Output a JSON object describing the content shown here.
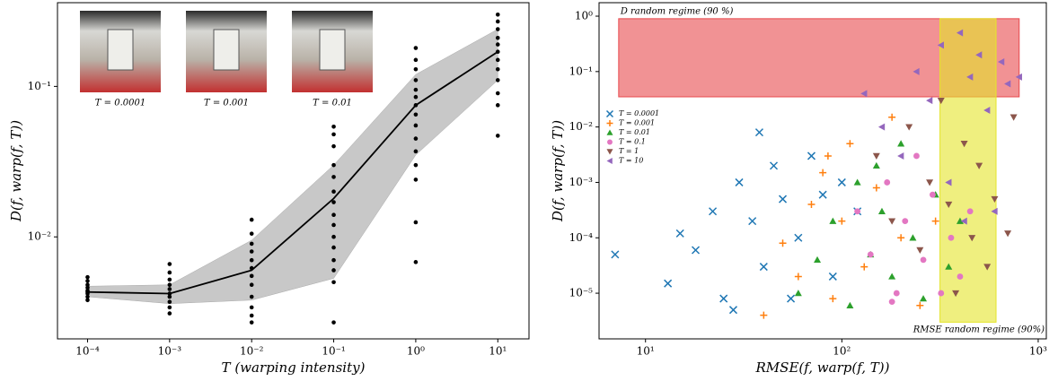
{
  "chart_data": [
    {
      "type": "line",
      "xlabel": "T (warping intensity)",
      "ylabel": "D(f, warp(f, T))",
      "xscale": "log",
      "yscale": "log",
      "xlim": [
        4.3e-05,
        24
      ],
      "ylim": [
        0.0021,
        0.36
      ],
      "xticks": [
        {
          "value": 0.0001,
          "label": "10⁻⁴"
        },
        {
          "value": 0.001,
          "label": "10⁻³"
        },
        {
          "value": 0.01,
          "label": "10⁻²"
        },
        {
          "value": 0.1,
          "label": "10⁻¹"
        },
        {
          "value": 1,
          "label": "10⁰"
        },
        {
          "value": 10,
          "label": "10¹"
        }
      ],
      "yticks": [
        {
          "value": 0.01,
          "label": "10⁻²"
        },
        {
          "value": 0.1,
          "label": "10⁻¹"
        }
      ],
      "x": [
        0.0001,
        0.001,
        0.01,
        0.1,
        1,
        10
      ],
      "series": [
        {
          "color": "#000000",
          "values": [
            0.0043,
            0.0042,
            0.006,
            0.018,
            0.075,
            0.17
          ]
        }
      ],
      "band": {
        "color": "#c8c8c8",
        "lower": [
          0.004,
          0.0036,
          0.0038,
          0.0053,
          0.035,
          0.11
        ],
        "upper": [
          0.0047,
          0.0048,
          0.0095,
          0.03,
          0.12,
          0.24
        ]
      },
      "dots": {
        "color": "#000000",
        "groups": [
          {
            "x": 0.0001,
            "values": [
              0.0038,
              0.004,
              0.0042,
              0.0043,
              0.0044,
              0.0046,
              0.0048,
              0.0051,
              0.0054
            ]
          },
          {
            "x": 0.001,
            "values": [
              0.0031,
              0.0034,
              0.0037,
              0.004,
              0.0042,
              0.0045,
              0.0048,
              0.0052,
              0.0058,
              0.0066
            ]
          },
          {
            "x": 0.01,
            "values": [
              0.0027,
              0.003,
              0.0034,
              0.004,
              0.0048,
              0.0055,
              0.0062,
              0.007,
              0.008,
              0.009,
              0.0105,
              0.013
            ]
          },
          {
            "x": 0.1,
            "values": [
              0.0027,
              0.005,
              0.006,
              0.007,
              0.0085,
              0.01,
              0.012,
              0.014,
              0.017,
              0.02,
              0.025,
              0.03,
              0.04,
              0.048,
              0.054
            ]
          },
          {
            "x": 1,
            "values": [
              0.0068,
              0.0125,
              0.024,
              0.03,
              0.037,
              0.045,
              0.055,
              0.065,
              0.075,
              0.085,
              0.095,
              0.11,
              0.13,
              0.15,
              0.18
            ]
          },
          {
            "x": 10,
            "values": [
              0.047,
              0.075,
              0.09,
              0.11,
              0.13,
              0.15,
              0.17,
              0.19,
              0.21,
              0.24,
              0.27,
              0.3
            ]
          }
        ]
      },
      "annotations": [
        "T = 0.0001",
        "T = 0.001",
        "T = 0.01"
      ]
    },
    {
      "type": "scatter",
      "xlabel": "RMSE(f, warp(f, T))",
      "ylabel": "D(f, warp(f, T))",
      "xscale": "log",
      "yscale": "log",
      "xlim": [
        5.8,
        1100
      ],
      "ylim": [
        1.5e-06,
        1.75
      ],
      "xticks": [
        {
          "value": 10,
          "label": "10¹"
        },
        {
          "value": 100,
          "label": "10²"
        },
        {
          "value": 1000,
          "label": "10³"
        }
      ],
      "yticks": [
        {
          "value": 1e-05,
          "label": "10⁻⁵"
        },
        {
          "value": 0.0001,
          "label": "10⁻⁴"
        },
        {
          "value": 0.001,
          "label": "10⁻³"
        },
        {
          "value": 0.01,
          "label": "10⁻²"
        },
        {
          "value": 0.1,
          "label": "10⁻¹"
        },
        {
          "value": 1,
          "label": "10⁰"
        }
      ],
      "legend": "upper left",
      "regions": [
        {
          "label": "D random regime (90 %)",
          "color": "#e8494d",
          "x": [
            7.3,
            800
          ],
          "y": [
            0.035,
            0.9
          ]
        },
        {
          "label": "RMSE random regime (90%)",
          "color": "#e5e52a",
          "x": [
            316,
            610
          ],
          "y": [
            3e-06,
            0.9
          ]
        }
      ],
      "series": [
        {
          "name": "T = 0.0001",
          "color": "#1f77b4",
          "marker": "x",
          "x": [
            7,
            13,
            15,
            18,
            22,
            25,
            30,
            35,
            40,
            45,
            50,
            55,
            60,
            70,
            80,
            90,
            100,
            120,
            28,
            38
          ],
          "values": [
            5e-05,
            1.5e-05,
            0.00012,
            6e-05,
            0.0003,
            8e-06,
            0.001,
            0.0002,
            3e-05,
            0.002,
            0.0005,
            8e-06,
            0.0001,
            0.003,
            0.0006,
            2e-05,
            0.001,
            0.0003,
            5e-06,
            0.008
          ]
        },
        {
          "name": "T = 0.001",
          "color": "#ff7f0e",
          "marker": "+",
          "x": [
            40,
            50,
            60,
            70,
            80,
            90,
            100,
            110,
            130,
            150,
            180,
            200,
            250,
            300,
            85
          ],
          "values": [
            4e-06,
            8e-05,
            2e-05,
            0.0004,
            0.0015,
            8e-06,
            0.0002,
            0.005,
            3e-05,
            0.0008,
            0.015,
            0.0001,
            6e-06,
            0.0002,
            0.003
          ]
        },
        {
          "name": "T = 0.01",
          "color": "#2ca02c",
          "marker": "^",
          "x": [
            60,
            75,
            90,
            110,
            120,
            140,
            160,
            180,
            200,
            230,
            260,
            300,
            350,
            400,
            150
          ],
          "values": [
            1e-05,
            4e-05,
            0.0002,
            6e-06,
            0.001,
            5e-05,
            0.0003,
            2e-05,
            0.005,
            0.0001,
            8e-06,
            0.0006,
            3e-05,
            0.0002,
            0.002
          ]
        },
        {
          "name": "T = 0.1",
          "color": "#e377c2",
          "marker": "o",
          "x": [
            120,
            140,
            170,
            190,
            210,
            240,
            260,
            290,
            320,
            360,
            400,
            450,
            180
          ],
          "values": [
            0.0003,
            5e-05,
            0.001,
            1e-05,
            0.0002,
            0.003,
            4e-05,
            0.0006,
            1e-05,
            0.0001,
            2e-05,
            0.0003,
            7e-06
          ]
        },
        {
          "name": "T = 1",
          "color": "#8c564b",
          "marker": "v",
          "x": [
            150,
            180,
            220,
            250,
            280,
            320,
            350,
            380,
            420,
            460,
            500,
            550,
            600,
            700,
            750
          ],
          "values": [
            0.003,
            0.0002,
            0.01,
            6e-05,
            0.001,
            0.03,
            0.0004,
            1e-05,
            0.005,
            0.0001,
            0.002,
            3e-05,
            0.0005,
            0.00012,
            0.015
          ]
        },
        {
          "name": "T = 10",
          "color": "#9467bd",
          "marker": "<",
          "x": [
            130,
            160,
            200,
            240,
            280,
            320,
            350,
            400,
            450,
            500,
            550,
            600,
            650,
            700,
            800,
            420
          ],
          "values": [
            0.04,
            0.01,
            0.003,
            0.1,
            0.03,
            0.3,
            0.001,
            0.5,
            0.08,
            0.2,
            0.02,
            0.0003,
            0.15,
            0.06,
            0.08,
            0.0002
          ]
        }
      ]
    }
  ]
}
